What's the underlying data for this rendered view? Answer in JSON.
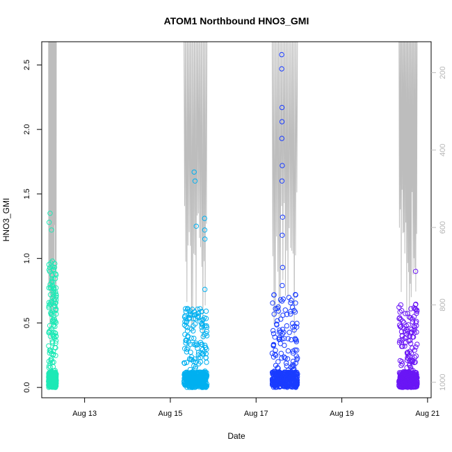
{
  "chart_data": {
    "type": "scatter",
    "title": "ATOM1 Northbound HNO3_GMI",
    "xlabel": "Date",
    "ylabel": "HNO3_GMI",
    "xlim": [
      "2016-08-12T00:00",
      "2016-08-21T02:00"
    ],
    "ylim": [
      -0.08,
      2.68
    ],
    "x_ticks": [
      {
        "value": "2016-08-13T00:00",
        "label": "Aug 13"
      },
      {
        "value": "2016-08-15T00:00",
        "label": "Aug 15"
      },
      {
        "value": "2016-08-17T00:00",
        "label": "Aug 17"
      },
      {
        "value": "2016-08-19T00:00",
        "label": "Aug 19"
      },
      {
        "value": "2016-08-21T00:00",
        "label": "Aug 21"
      }
    ],
    "y_ticks": [
      0.0,
      0.5,
      1.0,
      1.5,
      2.0,
      2.5
    ],
    "y_tick_labels": [
      "0.0",
      "0.5",
      "1.0",
      "1.5",
      "2.0",
      "2.5"
    ],
    "y2_axis": {
      "description": "secondary right axis (altitude-like), inverted, drawn in light gray",
      "ticks": [
        200,
        400,
        600,
        800,
        1000
      ],
      "range_top": 120,
      "range_bottom": 1040,
      "color": "#bdbdbd"
    },
    "grid": false,
    "legend": "none",
    "series": [
      {
        "color": "#1de9b6",
        "x_range": [
          "2016-08-12T03:50",
          "2016-08-12T08:10"
        ],
        "y_peak": 1.35,
        "y_dense_max": 0.97,
        "values_sample": [
          {
            "x": "2016-08-12T04:10",
            "y": 1.28
          },
          {
            "x": "2016-08-12T04:40",
            "y": 1.35
          },
          {
            "x": "2016-08-12T05:30",
            "y": 1.22
          },
          {
            "x": "2016-08-12T06:00",
            "y": 0.98
          },
          {
            "x": "2016-08-12T07:20",
            "y": 0.96
          },
          {
            "x": "2016-08-12T07:50",
            "y": 0.88
          },
          {
            "x": "2016-08-12T08:00",
            "y": 0.05
          }
        ]
      },
      {
        "color": "#00b0f0",
        "x_range": [
          "2016-08-15T07:40",
          "2016-08-15T20:30"
        ],
        "y_peak": 1.67,
        "y_dense_max": 0.62,
        "values_sample": [
          {
            "x": "2016-08-15T13:20",
            "y": 1.67
          },
          {
            "x": "2016-08-15T13:50",
            "y": 1.6
          },
          {
            "x": "2016-08-15T14:30",
            "y": 1.25
          },
          {
            "x": "2016-08-15T19:10",
            "y": 1.31
          },
          {
            "x": "2016-08-15T19:15",
            "y": 1.22
          },
          {
            "x": "2016-08-15T19:20",
            "y": 1.15
          },
          {
            "x": "2016-08-15T19:20",
            "y": 0.76
          },
          {
            "x": "2016-08-15T19:00",
            "y": 0.54
          },
          {
            "x": "2016-08-15T20:00",
            "y": 0.23
          }
        ]
      },
      {
        "color": "#1a3cff",
        "x_range": [
          "2016-08-17T09:00",
          "2016-08-17T23:10"
        ],
        "y_peak": 2.58,
        "y_dense_max": 0.72,
        "values_sample": [
          {
            "x": "2016-08-17T14:20",
            "y": 2.58
          },
          {
            "x": "2016-08-17T14:20",
            "y": 2.47
          },
          {
            "x": "2016-08-17T14:30",
            "y": 2.17
          },
          {
            "x": "2016-08-17T14:30",
            "y": 2.06
          },
          {
            "x": "2016-08-17T14:25",
            "y": 1.93
          },
          {
            "x": "2016-08-17T14:40",
            "y": 1.72
          },
          {
            "x": "2016-08-17T14:30",
            "y": 1.6
          },
          {
            "x": "2016-08-17T14:50",
            "y": 1.32
          },
          {
            "x": "2016-08-17T14:40",
            "y": 1.18
          },
          {
            "x": "2016-08-17T14:50",
            "y": 0.93
          },
          {
            "x": "2016-08-17T14:40",
            "y": 0.79
          },
          {
            "x": "2016-08-17T14:30",
            "y": 0.67
          },
          {
            "x": "2016-08-17T22:00",
            "y": 0.72
          }
        ]
      },
      {
        "color": "#6a16f5",
        "x_range": [
          "2016-08-20T08:00",
          "2016-08-20T18:10"
        ],
        "y_peak": 0.9,
        "y_dense_max": 0.65,
        "values_sample": [
          {
            "x": "2016-08-20T09:00",
            "y": 0.64
          },
          {
            "x": "2016-08-20T17:20",
            "y": 0.9
          },
          {
            "x": "2016-08-20T18:00",
            "y": 0.6
          }
        ]
      }
    ]
  }
}
